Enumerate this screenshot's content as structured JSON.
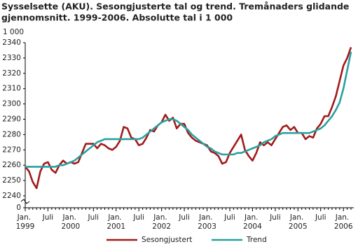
{
  "chart_data": {
    "type": "line",
    "title": "Sysselsette (AKU).  Sesongjusterte tal og trend. Tremånaders glidande",
    "subtitle": "gjennomsnitt. 1999-2006. Absolutte tal i 1 000",
    "y_axis_label": "1 000",
    "categories": [
      "Jan. 1999",
      null,
      null,
      null,
      null,
      null,
      "Juli",
      null,
      null,
      null,
      null,
      null,
      "Jan. 2000",
      null,
      null,
      null,
      null,
      null,
      "Juli",
      null,
      null,
      null,
      null,
      null,
      "Jan. 2001",
      null,
      null,
      null,
      null,
      null,
      "Juli",
      null,
      null,
      null,
      null,
      null,
      "Jan. 2002",
      null,
      null,
      null,
      null,
      null,
      "Juli",
      null,
      null,
      null,
      null,
      null,
      "Jan. 2003",
      null,
      null,
      null,
      null,
      null,
      "Juli",
      null,
      null,
      null,
      null,
      null,
      "Jan. 2004",
      null,
      null,
      null,
      null,
      null,
      "Juli",
      null,
      null,
      null,
      null,
      null,
      "Jan. 2005",
      null,
      null,
      null,
      null,
      null,
      "Juli",
      null,
      null,
      null,
      null,
      null,
      "Jan. 2006",
      null,
      null
    ],
    "series": [
      {
        "name": "Sesongjustert",
        "color": "#a31a1a",
        "values": [
          2259,
          2256,
          2249,
          2245,
          2256,
          2261,
          2262,
          2257,
          2255,
          2260,
          2263,
          2261,
          2262,
          2261,
          2262,
          2268,
          2274,
          2274,
          2274,
          2271,
          2274,
          2273,
          2271,
          2270,
          2272,
          2276,
          2285,
          2284,
          2278,
          2277,
          2273,
          2274,
          2278,
          2283,
          2282,
          2286,
          2288,
          2293,
          2289,
          2291,
          2284,
          2287,
          2287,
          2281,
          2278,
          2276,
          2275,
          2274,
          2273,
          2269,
          2268,
          2266,
          2261,
          2262,
          2268,
          2272,
          2276,
          2280,
          2270,
          2266,
          2263,
          2268,
          2275,
          2273,
          2275,
          2273,
          2277,
          2281,
          2285,
          2286,
          2283,
          2285,
          2281,
          2281,
          2277,
          2279,
          2278,
          2284,
          2287,
          2292,
          2292,
          2298,
          2305,
          2315,
          2325,
          2330,
          2337
        ]
      },
      {
        "name": "Trend",
        "color": "#2aa0a0",
        "values": [
          2259,
          2259,
          2259,
          2259,
          2259,
          2259,
          2259,
          2259,
          2259,
          2260,
          2260,
          2261,
          2262,
          2263,
          2265,
          2267,
          2269,
          2271,
          2273,
          2275,
          2276,
          2277,
          2277,
          2277,
          2277,
          2277,
          2277,
          2277,
          2277,
          2277,
          2277,
          2278,
          2280,
          2282,
          2284,
          2286,
          2288,
          2289,
          2290,
          2290,
          2289,
          2287,
          2285,
          2283,
          2280,
          2278,
          2276,
          2274,
          2272,
          2271,
          2269,
          2268,
          2267,
          2267,
          2267,
          2267,
          2268,
          2268,
          2269,
          2270,
          2271,
          2272,
          2273,
          2275,
          2276,
          2277,
          2279,
          2280,
          2281,
          2281,
          2281,
          2281,
          2281,
          2281,
          2281,
          2281,
          2282,
          2283,
          2284,
          2286,
          2289,
          2292,
          2296,
          2301,
          2310,
          2322,
          2334
        ]
      }
    ],
    "ylim": [
      2240,
      2340
    ],
    "yticks": [
      0,
      2240,
      2250,
      2260,
      2270,
      2280,
      2290,
      2300,
      2310,
      2320,
      2330,
      2340
    ],
    "axis_break": true,
    "grid": false,
    "legend": "bottom"
  }
}
